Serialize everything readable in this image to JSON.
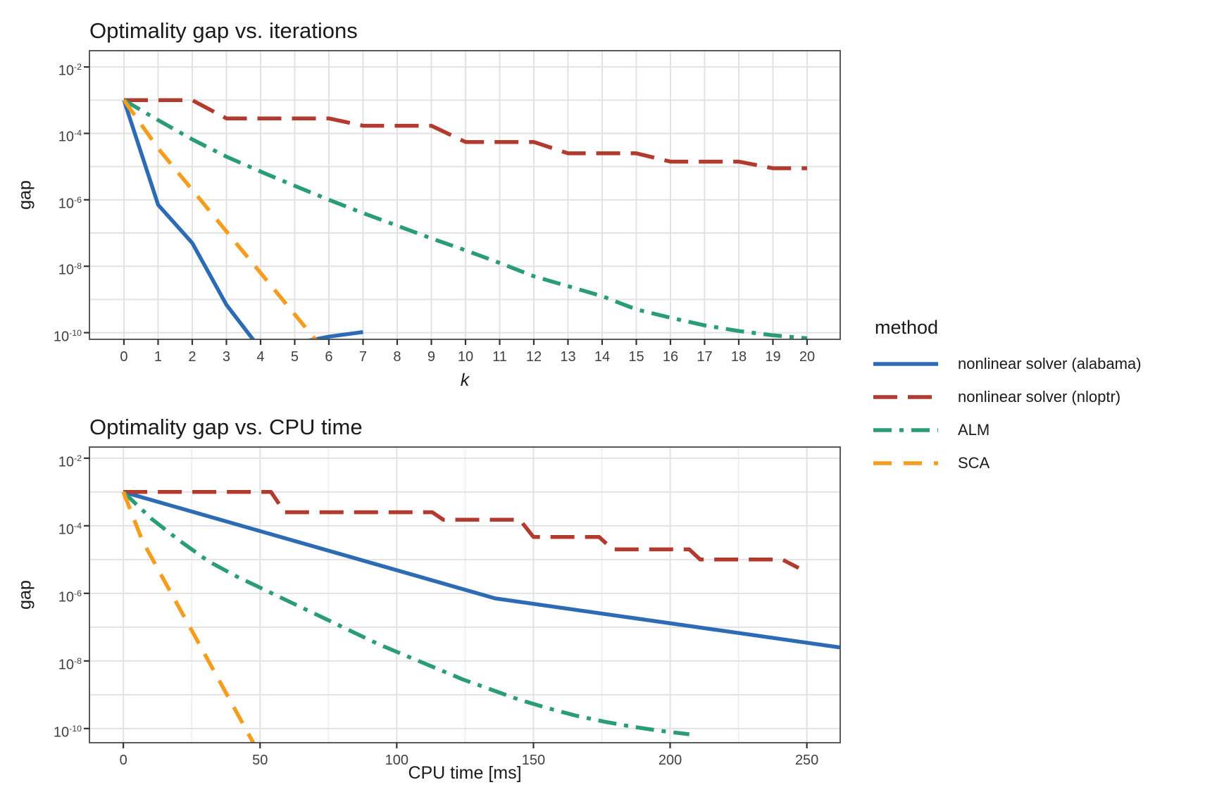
{
  "figure": {
    "background": "#ffffff",
    "text_color": "#1a1a1a",
    "tick_text_color": "#404040",
    "grid_color": "#e2e2e2",
    "grid_minor_color": "#ededed",
    "border_color": "#474747",
    "tick_mark_color": "#333333"
  },
  "legend": {
    "title": "method",
    "items": [
      {
        "label": "nonlinear solver (alabama)",
        "color": "#2d6cb5",
        "dash": []
      },
      {
        "label": "nonlinear solver (nloptr)",
        "color": "#b23a2e",
        "dash": [
          34,
          15
        ]
      },
      {
        "label": "ALM",
        "color": "#2a9c76",
        "dash": [
          26,
          11,
          6,
          11
        ]
      },
      {
        "label": "SCA",
        "color": "#f59d1e",
        "dash": [
          26,
          17
        ]
      }
    ]
  },
  "chart_data": [
    {
      "type": "line",
      "title": "Optimality gap vs. iterations",
      "xlabel": "k",
      "xlabel_style": "italic",
      "ylabel": "gap",
      "y_scale": "log10",
      "grid": true,
      "legend_position": "right",
      "x_ticks": [
        0,
        1,
        2,
        3,
        4,
        5,
        6,
        7,
        8,
        9,
        10,
        11,
        12,
        13,
        14,
        15,
        16,
        17,
        18,
        19,
        20
      ],
      "x_grid_minor": [],
      "y_tick_exponents": [
        -2,
        -4,
        -6,
        -8,
        -10
      ],
      "y_tick_labels": [
        "10^-2",
        "10^-4",
        "10^-6",
        "10^-8",
        "10^-10"
      ],
      "y_grid_exponents": [
        -2,
        -3,
        -4,
        -5,
        -6,
        -7,
        -8,
        -9,
        -10
      ],
      "xlim": [
        -1.01,
        20.97
      ],
      "ylim_exponents": [
        -1.51,
        -10.2
      ],
      "series": [
        {
          "name": "nonlinear solver (alabama)",
          "color": "#2d6cb5",
          "dash": [],
          "points": [
            [
              0,
              -3
            ],
            [
              1,
              -6.15
            ],
            [
              2,
              -7.3
            ],
            [
              3,
              -9.16
            ],
            [
              4,
              -10.5
            ],
            [
              5,
              -10.32
            ],
            [
              6,
              -10.12
            ],
            [
              7,
              -9.98
            ]
          ]
        },
        {
          "name": "nonlinear solver (nloptr)",
          "color": "#b23a2e",
          "dash": [
            34,
            15
          ],
          "points": [
            [
              0,
              -3
            ],
            [
              1,
              -3
            ],
            [
              2,
              -3
            ],
            [
              3,
              -3.55
            ],
            [
              4,
              -3.55
            ],
            [
              5,
              -3.55
            ],
            [
              6,
              -3.55
            ],
            [
              7,
              -3.77
            ],
            [
              8,
              -3.77
            ],
            [
              9,
              -3.77
            ],
            [
              10,
              -4.26
            ],
            [
              11,
              -4.26
            ],
            [
              12,
              -4.26
            ],
            [
              13,
              -4.6
            ],
            [
              14,
              -4.6
            ],
            [
              15,
              -4.6
            ],
            [
              16,
              -4.85
            ],
            [
              17,
              -4.85
            ],
            [
              18,
              -4.85
            ],
            [
              19,
              -5.05
            ],
            [
              20,
              -5.05
            ]
          ]
        },
        {
          "name": "ALM",
          "color": "#2a9c76",
          "dash": [
            26,
            11,
            6,
            11
          ],
          "points": [
            [
              0,
              -3
            ],
            [
              1,
              -3.6
            ],
            [
              2,
              -4.18
            ],
            [
              3,
              -4.7
            ],
            [
              4,
              -5.15
            ],
            [
              5,
              -5.58
            ],
            [
              6,
              -6.0
            ],
            [
              7,
              -6.4
            ],
            [
              8,
              -6.78
            ],
            [
              9,
              -7.16
            ],
            [
              10,
              -7.52
            ],
            [
              11,
              -7.9
            ],
            [
              12,
              -8.3
            ],
            [
              13,
              -8.6
            ],
            [
              14,
              -8.9
            ],
            [
              15,
              -9.3
            ],
            [
              16,
              -9.55
            ],
            [
              17,
              -9.78
            ],
            [
              18,
              -9.95
            ],
            [
              19,
              -10.08
            ],
            [
              20,
              -10.17
            ]
          ]
        },
        {
          "name": "SCA",
          "color": "#f59d1e",
          "dash": [
            26,
            17
          ],
          "points": [
            [
              0,
              -3
            ],
            [
              1,
              -4.45
            ],
            [
              2,
              -5.7
            ],
            [
              3,
              -6.95
            ],
            [
              4,
              -8.2
            ],
            [
              5,
              -9.45
            ],
            [
              6,
              -10.7
            ]
          ]
        }
      ]
    },
    {
      "type": "line",
      "title": "Optimality gap vs. CPU time",
      "xlabel": "CPU time [ms]",
      "xlabel_style": "normal",
      "ylabel": "gap",
      "y_scale": "log10",
      "grid": true,
      "legend_position": "right",
      "x_ticks": [
        0,
        50,
        100,
        150,
        200,
        250
      ],
      "x_grid_minor": [
        25,
        75,
        125,
        175,
        225
      ],
      "y_tick_exponents": [
        -2,
        -4,
        -6,
        -8,
        -10
      ],
      "y_tick_labels": [
        "10^-2",
        "10^-4",
        "10^-6",
        "10^-8",
        "10^-10"
      ],
      "y_grid_exponents": [
        -2,
        -3,
        -4,
        -5,
        -6,
        -7,
        -8,
        -9,
        -10
      ],
      "xlim": [
        -12.4,
        262.2
      ],
      "ylim_exponents": [
        -1.67,
        -10.42
      ],
      "series": [
        {
          "name": "nonlinear solver (alabama)",
          "color": "#2d6cb5",
          "dash": [],
          "points": [
            [
              0,
              -3
            ],
            [
              136,
              -6.15
            ],
            [
              262,
              -7.6
            ]
          ]
        },
        {
          "name": "nonlinear solver (nloptr)",
          "color": "#b23a2e",
          "dash": [
            34,
            15
          ],
          "points": [
            [
              0,
              -3
            ],
            [
              54,
              -3
            ],
            [
              59,
              -3.6
            ],
            [
              113,
              -3.6
            ],
            [
              117,
              -3.82
            ],
            [
              145,
              -3.82
            ],
            [
              150,
              -4.33
            ],
            [
              174,
              -4.33
            ],
            [
              179,
              -4.7
            ],
            [
              207,
              -4.7
            ],
            [
              211,
              -5.0
            ],
            [
              241,
              -5.0
            ],
            [
              247,
              -5.25
            ]
          ]
        },
        {
          "name": "ALM",
          "color": "#2a9c76",
          "dash": [
            26,
            11,
            6,
            11
          ],
          "points": [
            [
              0,
              -3
            ],
            [
              10.4,
              -3.8
            ],
            [
              20.7,
              -4.45
            ],
            [
              31.1,
              -5.05
            ],
            [
              41.4,
              -5.5
            ],
            [
              51.8,
              -5.9
            ],
            [
              62.1,
              -6.3
            ],
            [
              72.5,
              -6.7
            ],
            [
              82.8,
              -7.1
            ],
            [
              93.2,
              -7.5
            ],
            [
              103.5,
              -7.85
            ],
            [
              113.9,
              -8.2
            ],
            [
              124.2,
              -8.55
            ],
            [
              134.6,
              -8.85
            ],
            [
              144.9,
              -9.15
            ],
            [
              155.3,
              -9.4
            ],
            [
              165.6,
              -9.62
            ],
            [
              176,
              -9.8
            ],
            [
              186.3,
              -9.95
            ],
            [
              196.7,
              -10.07
            ],
            [
              207,
              -10.17
            ]
          ]
        },
        {
          "name": "SCA",
          "color": "#f59d1e",
          "dash": [
            26,
            17
          ],
          "points": [
            [
              0,
              -3
            ],
            [
              7,
              -4.45
            ],
            [
              15,
              -5.63
            ],
            [
              23,
              -6.8
            ],
            [
              31,
              -7.98
            ],
            [
              39,
              -9.16
            ],
            [
              49,
              -10.64
            ]
          ]
        }
      ]
    }
  ]
}
